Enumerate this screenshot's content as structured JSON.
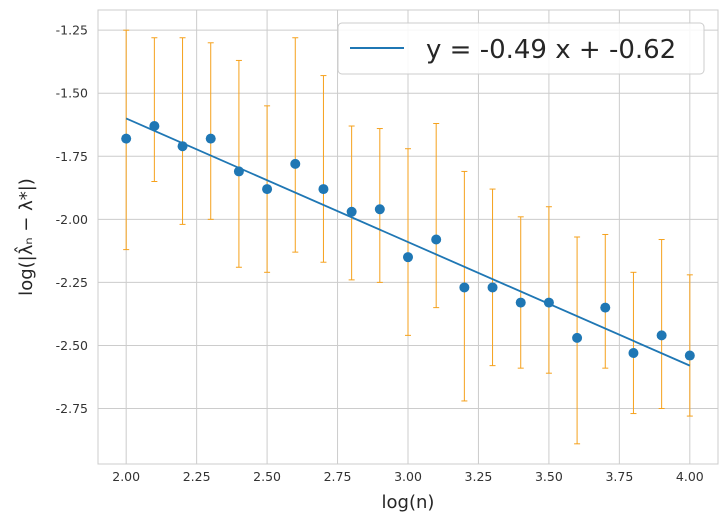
{
  "chart_data": {
    "type": "scatter",
    "xlabel": "log(n)",
    "ylabel": "log(|λ̂ₙ − λ*|)",
    "xlim": [
      1.9,
      4.1
    ],
    "ylim": [
      -2.97,
      -1.17
    ],
    "xticks": [
      "2.00",
      "2.25",
      "2.50",
      "2.75",
      "3.00",
      "3.25",
      "3.50",
      "3.75",
      "4.00"
    ],
    "yticks": [
      "-1.25",
      "-1.50",
      "-1.75",
      "-2.00",
      "-2.25",
      "-2.50",
      "-2.75"
    ],
    "grid": true,
    "legend_position": "top-right",
    "series": [
      {
        "kind": "errorbar-scatter",
        "marker_color": "#1f77b4",
        "errorbar_color": "#f5a11c",
        "points": [
          {
            "x": 2.0,
            "y": -1.68,
            "lo": -2.12,
            "hi": -1.25
          },
          {
            "x": 2.1,
            "y": -1.63,
            "lo": -1.85,
            "hi": -1.28
          },
          {
            "x": 2.2,
            "y": -1.71,
            "lo": -2.02,
            "hi": -1.28
          },
          {
            "x": 2.3,
            "y": -1.68,
            "lo": -2.0,
            "hi": -1.3
          },
          {
            "x": 2.4,
            "y": -1.81,
            "lo": -2.19,
            "hi": -1.37
          },
          {
            "x": 2.5,
            "y": -1.88,
            "lo": -2.21,
            "hi": -1.55
          },
          {
            "x": 2.6,
            "y": -1.78,
            "lo": -2.13,
            "hi": -1.28
          },
          {
            "x": 2.7,
            "y": -1.88,
            "lo": -2.17,
            "hi": -1.43
          },
          {
            "x": 2.8,
            "y": -1.97,
            "lo": -2.24,
            "hi": -1.63
          },
          {
            "x": 2.9,
            "y": -1.96,
            "lo": -2.25,
            "hi": -1.64
          },
          {
            "x": 3.0,
            "y": -2.15,
            "lo": -2.46,
            "hi": -1.72
          },
          {
            "x": 3.1,
            "y": -2.08,
            "lo": -2.35,
            "hi": -1.62
          },
          {
            "x": 3.2,
            "y": -2.27,
            "lo": -2.72,
            "hi": -1.81
          },
          {
            "x": 3.3,
            "y": -2.27,
            "lo": -2.58,
            "hi": -1.88
          },
          {
            "x": 3.4,
            "y": -2.33,
            "lo": -2.59,
            "hi": -1.99
          },
          {
            "x": 3.5,
            "y": -2.33,
            "lo": -2.61,
            "hi": -1.95
          },
          {
            "x": 3.6,
            "y": -2.47,
            "lo": -2.89,
            "hi": -2.07
          },
          {
            "x": 3.7,
            "y": -2.35,
            "lo": -2.59,
            "hi": -2.06
          },
          {
            "x": 3.8,
            "y": -2.53,
            "lo": -2.77,
            "hi": -2.21
          },
          {
            "x": 3.9,
            "y": -2.46,
            "lo": -2.75,
            "hi": -2.08
          },
          {
            "x": 4.0,
            "y": -2.54,
            "lo": -2.78,
            "hi": -2.22
          }
        ]
      },
      {
        "kind": "line",
        "name": "y = -0.49 x + -0.62",
        "color": "#1f77b4",
        "x": [
          2.0,
          4.0
        ],
        "y": [
          -1.6,
          -2.58
        ]
      }
    ]
  }
}
